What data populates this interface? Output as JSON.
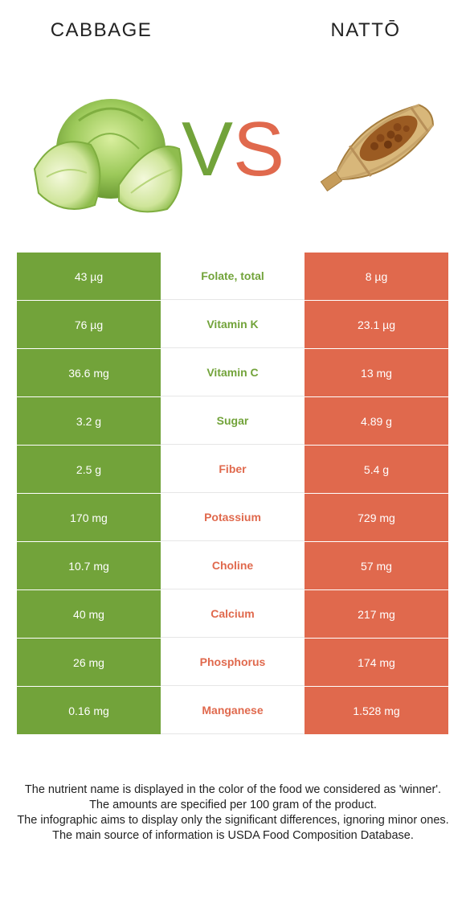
{
  "header": {
    "left_food": "CABBAGE",
    "right_food": "NATTŌ",
    "vs_v": "V",
    "vs_s": "S"
  },
  "colors": {
    "left": "#72a33a",
    "right": "#e0694d"
  },
  "rows": [
    {
      "left": "43 µg",
      "name": "Folate, total",
      "right": "8 µg",
      "winner": "left"
    },
    {
      "left": "76 µg",
      "name": "Vitamin K",
      "right": "23.1 µg",
      "winner": "left"
    },
    {
      "left": "36.6 mg",
      "name": "Vitamin C",
      "right": "13 mg",
      "winner": "left"
    },
    {
      "left": "3.2 g",
      "name": "Sugar",
      "right": "4.89 g",
      "winner": "left"
    },
    {
      "left": "2.5 g",
      "name": "Fiber",
      "right": "5.4 g",
      "winner": "right"
    },
    {
      "left": "170 mg",
      "name": "Potassium",
      "right": "729 mg",
      "winner": "right"
    },
    {
      "left": "10.7 mg",
      "name": "Choline",
      "right": "57 mg",
      "winner": "right"
    },
    {
      "left": "40 mg",
      "name": "Calcium",
      "right": "217 mg",
      "winner": "right"
    },
    {
      "left": "26 mg",
      "name": "Phosphorus",
      "right": "174 mg",
      "winner": "right"
    },
    {
      "left": "0.16 mg",
      "name": "Manganese",
      "right": "1.528 mg",
      "winner": "right"
    }
  ],
  "footer": [
    "The nutrient name is displayed in the color of the food we considered as 'winner'.",
    "The amounts are specified per 100 gram of the product.",
    "The infographic aims to display only the significant differences, ignoring minor ones.",
    "The main source of information is USDA Food Composition Database."
  ]
}
